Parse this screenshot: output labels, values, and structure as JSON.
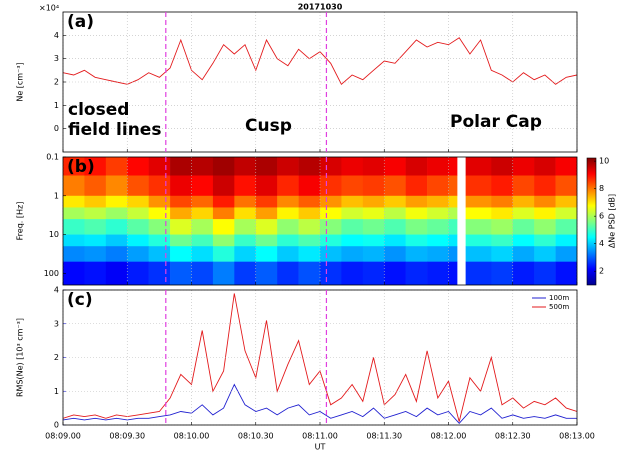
{
  "chart_data": [
    {
      "type": "line",
      "title": "20171030",
      "panel_label": "(a)",
      "ylabel": "Ne [cm⁻³]",
      "multiplier": "×10⁴",
      "annotations": [
        "closed",
        "field lines",
        "Cusp",
        "Polar Cap"
      ],
      "x": [
        29340,
        29345,
        29350,
        29355,
        29360,
        29365,
        29370,
        29375,
        29380,
        29385,
        29390,
        29395,
        29400,
        29405,
        29410,
        29415,
        29420,
        29425,
        29430,
        29435,
        29440,
        29445,
        29450,
        29455,
        29460,
        29465,
        29470,
        29475,
        29480,
        29485,
        29490,
        29495,
        29500,
        29505,
        29510,
        29515,
        29520,
        29525,
        29530,
        29535,
        29540,
        29545,
        29550,
        29555,
        29560,
        29565,
        29570,
        29575,
        29580
      ],
      "values": [
        2.4,
        2.3,
        2.5,
        2.2,
        2.1,
        2.0,
        1.9,
        2.1,
        2.4,
        2.2,
        2.6,
        3.8,
        2.5,
        2.1,
        2.8,
        3.6,
        3.2,
        3.6,
        2.5,
        3.8,
        3.0,
        2.7,
        3.4,
        3.0,
        3.3,
        2.8,
        1.9,
        2.3,
        2.1,
        2.5,
        2.9,
        2.8,
        3.3,
        3.8,
        3.5,
        3.7,
        3.6,
        3.9,
        3.2,
        3.8,
        2.5,
        2.3,
        2.0,
        2.4,
        2.1,
        2.3,
        1.9,
        2.2,
        2.3
      ],
      "color": "#e31a1c",
      "xlim": [
        29340,
        29580
      ],
      "ylim": [
        -1,
        5
      ],
      "yticks": [
        0,
        1,
        2,
        3,
        4
      ],
      "vlines": [
        29388,
        29463
      ],
      "vline_color": "#e040e0",
      "grid": true
    },
    {
      "type": "heatmap",
      "panel_label": "(b)",
      "ylabel": "Freq. [Hz]",
      "colorbar_label": "ΔNe PSD [dB]",
      "x_edges": [
        29340,
        29350,
        29360,
        29370,
        29380,
        29390,
        29400,
        29410,
        29420,
        29430,
        29440,
        29450,
        29460,
        29470,
        29480,
        29490,
        29500,
        29510,
        29520,
        29524,
        29528,
        29540,
        29550,
        29560,
        29570,
        29580
      ],
      "y_edges": [
        0.1,
        0.3,
        1,
        2,
        4,
        10,
        20,
        50,
        200
      ],
      "z": [
        [
          8.8,
          9.0,
          8.6,
          9.1,
          9.4,
          9.9,
          9.8,
          10,
          9.7,
          9.9,
          9.6,
          9.8,
          9.5,
          9.3,
          9.4,
          9.2,
          9.5,
          9.3,
          9.2,
          null,
          9.4,
          9.6,
          9.3,
          9.5,
          9.2
        ],
        [
          8.0,
          8.3,
          7.9,
          8.4,
          8.7,
          9.3,
          9.1,
          9.6,
          9.0,
          9.4,
          8.8,
          9.2,
          8.7,
          8.5,
          8.6,
          8.4,
          8.8,
          8.5,
          8.3,
          null,
          8.7,
          8.9,
          8.5,
          8.8,
          8.4
        ],
        [
          7.0,
          7.3,
          6.9,
          7.2,
          7.8,
          8.5,
          8.2,
          8.9,
          8.1,
          8.6,
          7.9,
          8.3,
          7.8,
          7.4,
          7.6,
          7.3,
          7.7,
          7.5,
          7.2,
          null,
          7.8,
          8.0,
          7.5,
          7.9,
          7.4
        ],
        [
          6.0,
          6.2,
          5.9,
          6.3,
          6.8,
          7.6,
          7.2,
          8.0,
          7.1,
          7.7,
          6.9,
          7.3,
          6.8,
          6.4,
          6.6,
          6.2,
          6.7,
          6.4,
          6.1,
          null,
          6.8,
          7.0,
          6.5,
          6.9,
          6.4
        ],
        [
          5.0,
          5.2,
          4.9,
          5.3,
          5.7,
          6.5,
          6.0,
          6.8,
          6.0,
          6.5,
          5.8,
          6.2,
          5.7,
          5.3,
          5.5,
          5.2,
          5.6,
          5.4,
          5.1,
          null,
          5.7,
          5.9,
          5.4,
          5.8,
          5.3
        ],
        [
          4.2,
          4.3,
          4.0,
          4.4,
          4.8,
          5.5,
          5.1,
          5.8,
          5.0,
          5.5,
          4.9,
          5.2,
          4.8,
          4.5,
          4.6,
          4.3,
          4.7,
          4.5,
          4.3,
          null,
          4.8,
          5.0,
          4.5,
          4.9,
          4.4
        ],
        [
          3.4,
          3.5,
          3.3,
          3.6,
          3.9,
          4.5,
          4.2,
          4.8,
          4.1,
          4.5,
          4.0,
          4.3,
          3.9,
          3.7,
          3.8,
          3.5,
          3.8,
          3.7,
          3.5,
          null,
          3.9,
          4.1,
          3.7,
          4.0,
          3.6
        ],
        [
          2.2,
          2.3,
          2.1,
          2.4,
          2.6,
          3.0,
          2.8,
          3.3,
          2.7,
          3.0,
          2.6,
          2.9,
          2.6,
          2.4,
          2.5,
          2.3,
          2.5,
          2.4,
          2.3,
          null,
          2.6,
          2.7,
          2.4,
          2.6,
          2.3
        ]
      ],
      "ylim": [
        0.1,
        200
      ],
      "log_y": true,
      "y_reversed": true,
      "yticks": [
        0.1,
        1,
        10,
        100
      ],
      "clim": [
        1,
        10.3
      ],
      "cticks": [
        2,
        4,
        6,
        8,
        10
      ],
      "colormap": "jet"
    },
    {
      "type": "line",
      "panel_label": "(c)",
      "ylabel": "RMS(Ne) [10³ cm⁻³]",
      "xlabel": "UT",
      "x": [
        29340,
        29345,
        29350,
        29355,
        29360,
        29365,
        29370,
        29375,
        29380,
        29385,
        29390,
        29395,
        29400,
        29405,
        29410,
        29415,
        29420,
        29425,
        29430,
        29435,
        29440,
        29445,
        29450,
        29455,
        29460,
        29465,
        29470,
        29475,
        29480,
        29485,
        29490,
        29495,
        29500,
        29505,
        29510,
        29515,
        29520,
        29525,
        29530,
        29535,
        29540,
        29545,
        29550,
        29555,
        29560,
        29565,
        29570,
        29575,
        29580
      ],
      "series": [
        {
          "name": "100m",
          "color": "#2020d0",
          "values": [
            0.15,
            0.2,
            0.15,
            0.2,
            0.15,
            0.2,
            0.15,
            0.2,
            0.2,
            0.25,
            0.3,
            0.4,
            0.35,
            0.6,
            0.3,
            0.5,
            1.2,
            0.6,
            0.4,
            0.5,
            0.3,
            0.5,
            0.6,
            0.3,
            0.4,
            0.2,
            0.3,
            0.4,
            0.25,
            0.5,
            0.2,
            0.3,
            0.4,
            0.25,
            0.5,
            0.3,
            0.4,
            0.05,
            0.4,
            0.3,
            0.5,
            0.2,
            0.3,
            0.2,
            0.25,
            0.2,
            0.3,
            0.2,
            0.2
          ]
        },
        {
          "name": "500m",
          "color": "#e31a1c",
          "values": [
            0.2,
            0.3,
            0.25,
            0.3,
            0.2,
            0.3,
            0.25,
            0.3,
            0.35,
            0.4,
            0.8,
            1.5,
            1.2,
            2.8,
            1.0,
            1.6,
            3.9,
            2.2,
            1.4,
            3.1,
            1.0,
            1.8,
            2.5,
            1.2,
            1.6,
            0.6,
            0.8,
            1.2,
            0.7,
            2.0,
            0.6,
            0.9,
            1.5,
            0.7,
            2.2,
            0.8,
            1.3,
            0.1,
            1.4,
            1.0,
            2.0,
            0.6,
            0.8,
            0.5,
            0.7,
            0.6,
            0.8,
            0.5,
            0.4
          ]
        }
      ],
      "xlim": [
        29340,
        29580
      ],
      "ylim": [
        0,
        4
      ],
      "yticks": [
        0,
        1,
        2,
        3,
        4
      ],
      "axis_color": "#2020d0",
      "xticks": [
        {
          "value": 29340,
          "label": "08:09.00"
        },
        {
          "value": 29370,
          "label": "08:09.30"
        },
        {
          "value": 29400,
          "label": "08:10.00"
        },
        {
          "value": 29430,
          "label": "08:10.30"
        },
        {
          "value": 29460,
          "label": "08:11.00"
        },
        {
          "value": 29490,
          "label": "08:11.30"
        },
        {
          "value": 29520,
          "label": "08:12.00"
        },
        {
          "value": 29550,
          "label": "08:12.30"
        },
        {
          "value": 29580,
          "label": "08:13.00"
        }
      ],
      "legend": "upper right",
      "grid": true
    }
  ]
}
